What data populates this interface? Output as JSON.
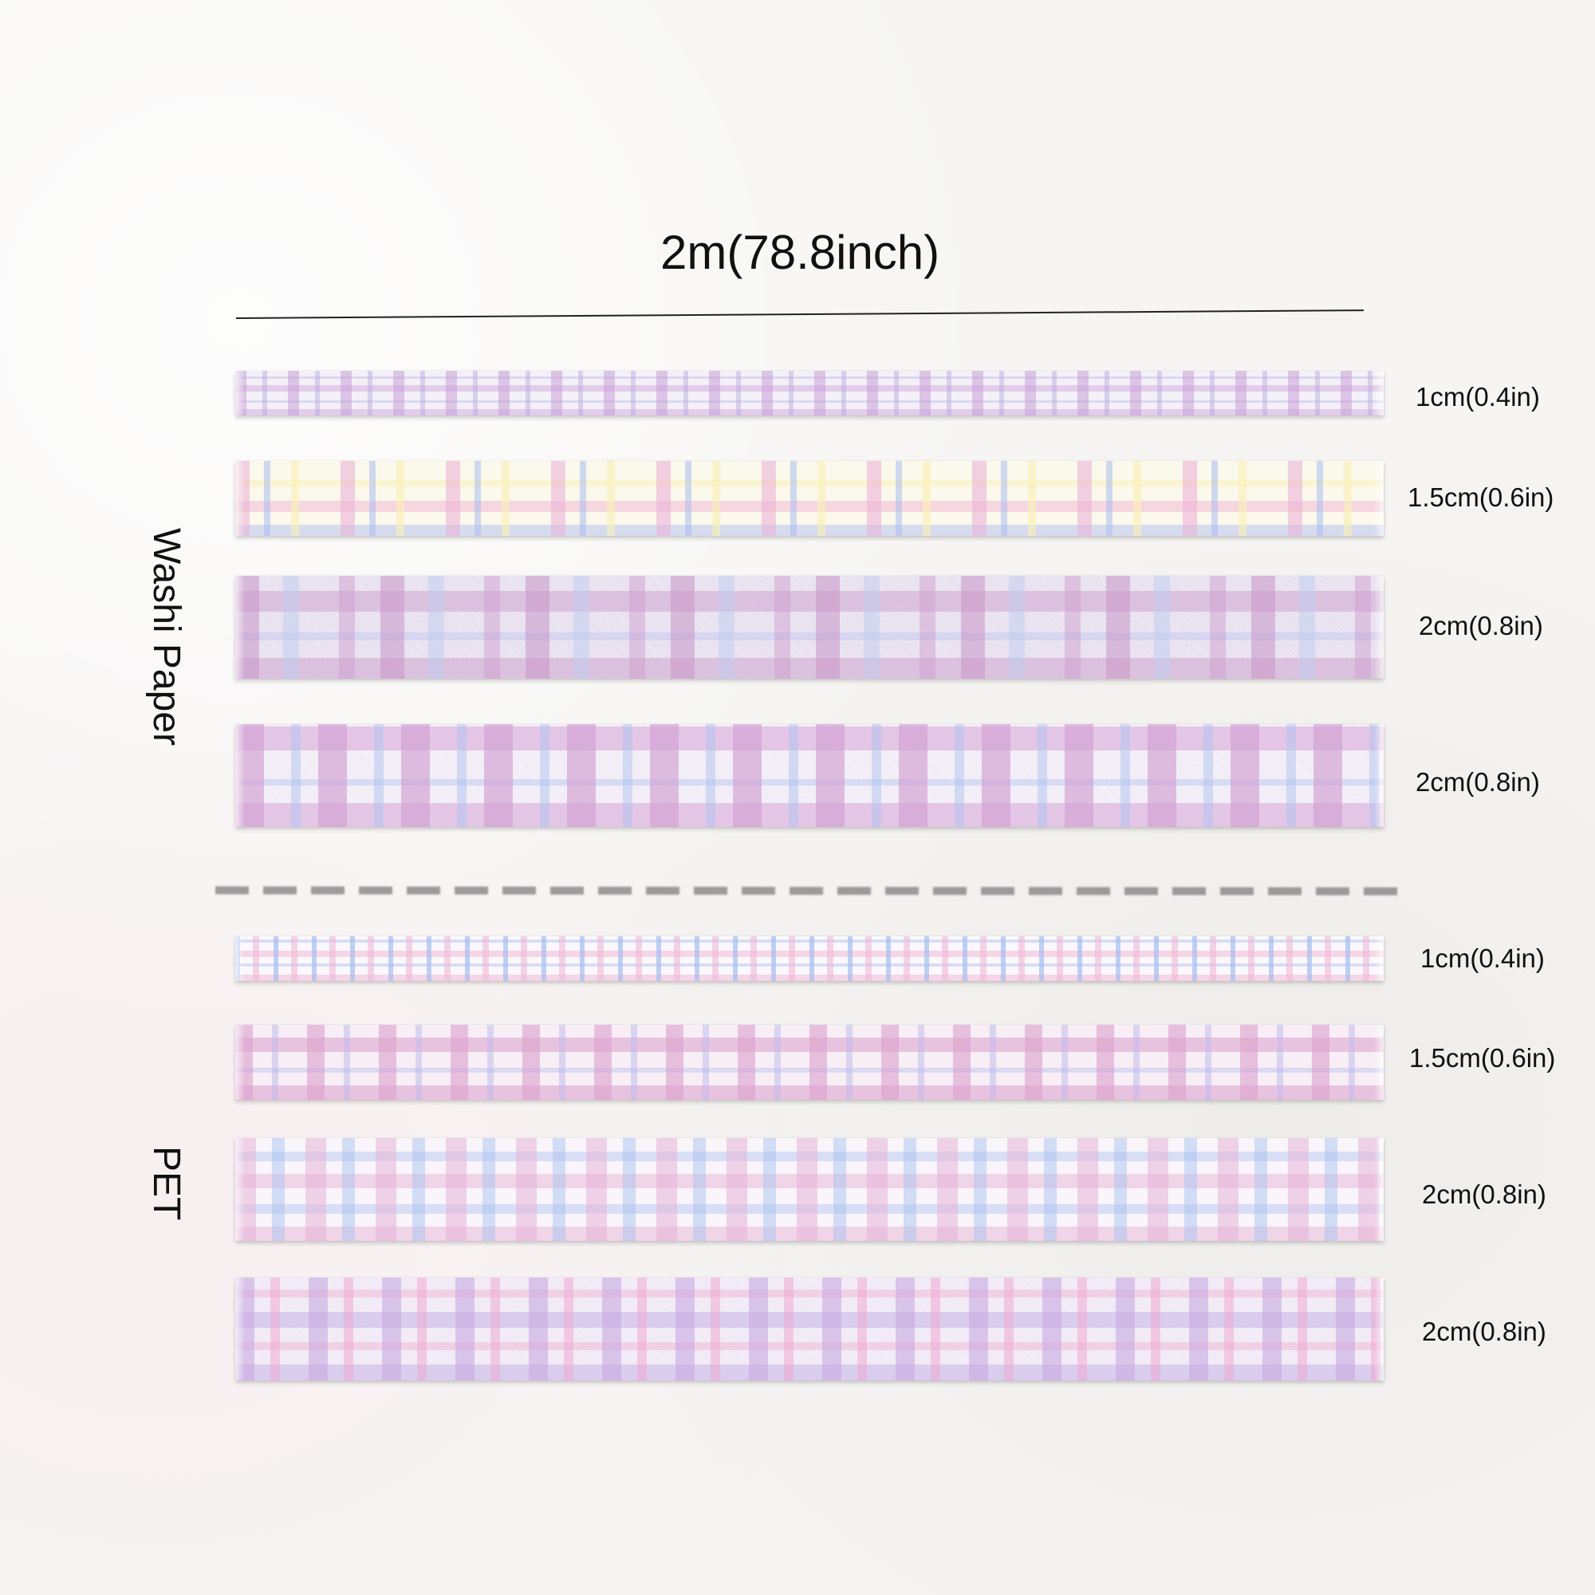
{
  "header": {
    "length_label": "2m(78.8inch)"
  },
  "groups": {
    "washi": {
      "label": "Washi Paper",
      "tapes": [
        {
          "width": "1cm(0.4in)",
          "colors": [
            "#c9a0d7",
            "#b4aadc"
          ]
        },
        {
          "width": "1.5cm(0.6in)",
          "colors": [
            "#ebb4d7",
            "#aabef0",
            "#faf0b4"
          ]
        },
        {
          "width": "2cm(0.8in)",
          "colors": [
            "#c896c8",
            "#bed2f0"
          ]
        },
        {
          "width": "2cm(0.8in)",
          "colors": [
            "#d2a0d2",
            "#afc3f0"
          ]
        }
      ]
    },
    "pet": {
      "label": "PET",
      "tapes": [
        {
          "width": "1cm(0.4in)",
          "colors": [
            "#a5bef0",
            "#f0b9d7"
          ]
        },
        {
          "width": "1.5cm(0.6in)",
          "colors": [
            "#dca0cd",
            "#beb9eb"
          ]
        },
        {
          "width": "2cm(0.8in)",
          "colors": [
            "#e6b4d7",
            "#aac3f0"
          ]
        },
        {
          "width": "2cm(0.8in)",
          "colors": [
            "#c8aae1",
            "#f0aad2"
          ]
        }
      ]
    }
  }
}
